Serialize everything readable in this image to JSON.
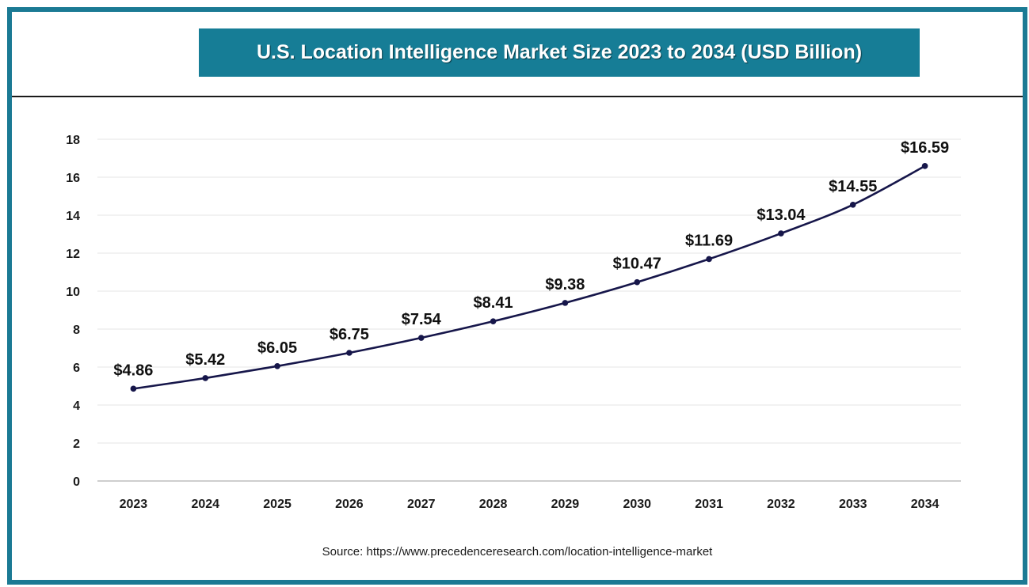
{
  "source": "Source: https://www.precedenceresearch.com/location-intelligence-market",
  "colors": {
    "frame": "#1b7a94",
    "title_bg": "#167d96",
    "line": "#16164a",
    "grid": "#e6e6e6"
  },
  "chart_data": {
    "type": "line",
    "title": "U.S. Location Intelligence Market Size 2023 to 2034 (USD Billion)",
    "xlabel": "",
    "ylabel": "",
    "categories": [
      "2023",
      "2024",
      "2025",
      "2026",
      "2027",
      "2028",
      "2029",
      "2030",
      "2031",
      "2032",
      "2033",
      "2034"
    ],
    "series": [
      {
        "values": [
          4.86,
          5.42,
          6.05,
          6.75,
          7.54,
          8.41,
          9.38,
          10.47,
          11.69,
          13.04,
          14.55,
          16.59
        ],
        "labels": [
          "$4.86",
          "$5.42",
          "$6.05",
          "$6.75",
          "$7.54",
          "$8.41",
          "$9.38",
          "$10.47",
          "$11.69",
          "$13.04",
          "$14.55",
          "$16.59"
        ]
      }
    ],
    "ylim": [
      0,
      18
    ],
    "yticks": [
      "0",
      "2",
      "4",
      "6",
      "8",
      "10",
      "12",
      "14",
      "16",
      "18"
    ],
    "grid": true,
    "legend": "none"
  }
}
